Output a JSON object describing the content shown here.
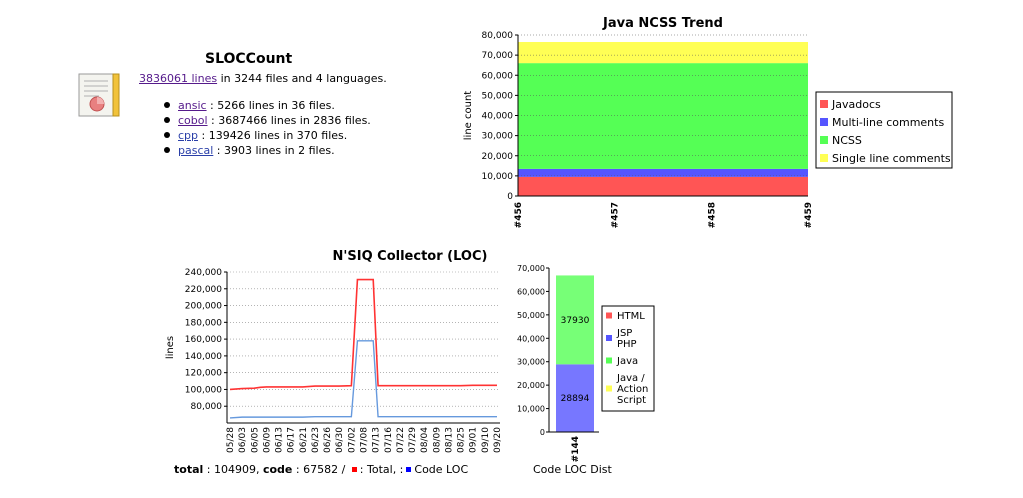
{
  "sloccount": {
    "title": "SLOCCount",
    "total_lines_link": "3836061 lines",
    "summary_rest": " in 3244 files and 4 languages.",
    "languages": [
      {
        "name": "ansic",
        "rest": " : 5266 lines in 36 files."
      },
      {
        "name": "cobol",
        "rest": " : 3687466 lines in 2836 files."
      },
      {
        "name": "cpp",
        "rest": " : 139426 lines in 370 files."
      },
      {
        "name": "pascal",
        "rest": " : 3903 lines in 2 files."
      }
    ]
  },
  "footer": {
    "total_label": "total",
    "total_value": " : 104909, ",
    "code_label": "code",
    "code_value": " : 67582 /",
    "legend_total": ": Total, :",
    "legend_code": "Code LOC"
  },
  "chart_data": [
    {
      "type": "area",
      "title": "Java NCSS Trend",
      "xlabel": "",
      "ylabel": "line count",
      "categories": [
        "#456",
        "#457",
        "#458",
        "#459"
      ],
      "ylim": [
        0,
        80000
      ],
      "yticks": [
        0,
        10000,
        20000,
        30000,
        40000,
        50000,
        60000,
        70000,
        80000
      ],
      "ytick_labels": [
        "0",
        "10,000",
        "20,000",
        "30,000",
        "40,000",
        "50,000",
        "60,000",
        "70,000",
        "80,000"
      ],
      "stacked": true,
      "series": [
        {
          "name": "Javadocs",
          "color": "#ff5555",
          "values": [
            9500,
            9500,
            9500,
            9500
          ]
        },
        {
          "name": "Multi-line comments",
          "color": "#5555ff",
          "values": [
            4000,
            4000,
            4000,
            4000
          ]
        },
        {
          "name": "NCSS",
          "color": "#55ff55",
          "values": [
            52500,
            52500,
            52500,
            52500
          ]
        },
        {
          "name": "Single line comments",
          "color": "#ffff55",
          "values": [
            10500,
            10500,
            10500,
            10500
          ]
        }
      ],
      "legend_position": "right"
    },
    {
      "type": "line",
      "title": "N'SIQ Collector (LOC)",
      "xlabel": "",
      "ylabel": "lines",
      "categories": [
        "05/28",
        "06/03",
        "06/05",
        "06/09",
        "06/13",
        "06/17",
        "06/21",
        "06/23",
        "06/26",
        "06/30",
        "07/02",
        "07/08",
        "07/13",
        "07/16",
        "07/22",
        "07/29",
        "08/04",
        "08/09",
        "08/13",
        "08/25",
        "09/01",
        "09/10",
        "09/20"
      ],
      "ylim": [
        60000,
        240000
      ],
      "yticks": [
        80000,
        100000,
        120000,
        140000,
        160000,
        180000,
        200000,
        220000,
        240000
      ],
      "ytick_labels": [
        "80,000",
        "100,000",
        "120,000",
        "140,000",
        "160,000",
        "180,000",
        "200,000",
        "220,000",
        "240,000"
      ],
      "series": [
        {
          "name": "Total",
          "color": "#ff3333",
          "x": [
            0,
            1,
            2,
            2.5,
            3,
            4,
            5,
            6,
            7,
            8,
            9,
            10,
            10.5,
            11.2,
            11.8,
            12.2,
            13,
            14,
            15,
            16,
            17,
            18,
            19,
            20,
            21,
            22
          ],
          "values": [
            100000,
            101000,
            101500,
            102500,
            103000,
            103000,
            103000,
            103000,
            104000,
            104000,
            104000,
            104500,
            231000,
            231000,
            231000,
            104500,
            104500,
            104500,
            104500,
            104500,
            104500,
            104500,
            104500,
            104909,
            104909,
            104909
          ]
        },
        {
          "name": "Code LOC",
          "color": "#6699dd",
          "x": [
            0,
            1,
            2,
            3,
            4,
            5,
            6,
            7,
            8,
            9,
            10,
            10.5,
            11.2,
            11.8,
            12.2,
            13,
            14,
            15,
            16,
            17,
            18,
            19,
            20,
            21,
            22
          ],
          "values": [
            66000,
            67000,
            67000,
            67000,
            67000,
            67000,
            67000,
            67500,
            67500,
            67500,
            67500,
            158000,
            158000,
            158000,
            67582,
            67582,
            67582,
            67582,
            67582,
            67582,
            67582,
            67582,
            67582,
            67582,
            67582
          ]
        }
      ]
    },
    {
      "type": "bar",
      "title": "",
      "xlabel": "Code LOC Dist",
      "ylabel": "",
      "categories": [
        "#144"
      ],
      "ylim": [
        0,
        70000
      ],
      "yticks": [
        0,
        10000,
        20000,
        30000,
        40000,
        50000,
        60000,
        70000
      ],
      "ytick_labels": [
        "0",
        "10,000",
        "20,000",
        "30,000",
        "40,000",
        "50,000",
        "60,000",
        "70,000"
      ],
      "stacked": true,
      "series": [
        {
          "name": "HTML",
          "color": "#ff5555",
          "values": [
            0
          ],
          "label": ""
        },
        {
          "name": "JSP PHP",
          "color": "#7777ff",
          "values": [
            28894
          ],
          "label": "28894"
        },
        {
          "name": "Java",
          "color": "#77ff77",
          "values": [
            37930
          ],
          "label": "37930"
        },
        {
          "name": "Java / Action Script",
          "color": "#ffff55",
          "values": [
            0
          ],
          "label": ""
        }
      ],
      "legend": [
        {
          "lines": [
            "HTML"
          ],
          "color": "#ff5555"
        },
        {
          "lines": [
            "JSP",
            "PHP"
          ],
          "color": "#5555ff"
        },
        {
          "lines": [
            "Java"
          ],
          "color": "#55ff55"
        },
        {
          "lines": [
            "Java /",
            "Action",
            "Script"
          ],
          "color": "#ffff55"
        }
      ],
      "legend_position": "right"
    }
  ]
}
